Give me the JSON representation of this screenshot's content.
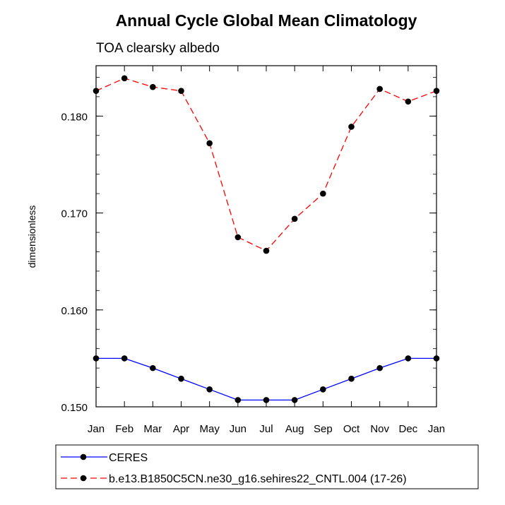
{
  "chart_data": {
    "type": "line",
    "title": "Annual Cycle Global Mean Climatology",
    "subtitle": "TOA clearsky albedo",
    "xlabel": "",
    "ylabel": "dimensionless",
    "categories": [
      "Jan",
      "Feb",
      "Mar",
      "Apr",
      "May",
      "Jun",
      "Jul",
      "Aug",
      "Sep",
      "Oct",
      "Nov",
      "Dec",
      "Jan"
    ],
    "yticks": [
      0.15,
      0.16,
      0.17,
      0.18
    ],
    "ytick_labels": [
      "0.150",
      "0.160",
      "0.170",
      "0.180"
    ],
    "ylim": [
      0.15,
      0.1852
    ],
    "grid": false,
    "legend_position": "bottom",
    "series": [
      {
        "name": "CERES",
        "color": "#0000ff",
        "dash": "solid",
        "values": [
          0.155,
          0.155,
          0.154,
          0.1529,
          0.1518,
          0.1507,
          0.1507,
          0.1507,
          0.1518,
          0.1529,
          0.154,
          0.155,
          0.155
        ]
      },
      {
        "name": "b.e13.B1850C5CN.ne30_g16.sehires22_CNTL.004 (17-26)",
        "color": "#ff0000",
        "dash": "dashed",
        "values": [
          0.1826,
          0.1839,
          0.183,
          0.1826,
          0.1772,
          0.1675,
          0.1661,
          0.1694,
          0.172,
          0.1789,
          0.1828,
          0.1815,
          0.1826
        ]
      }
    ]
  }
}
